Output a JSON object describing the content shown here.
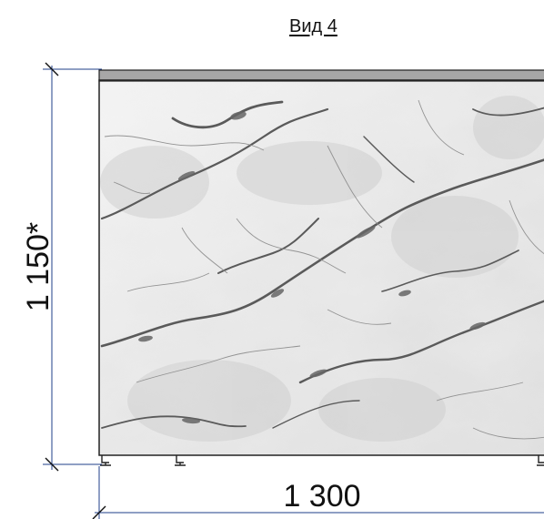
{
  "view": {
    "title": "Вид 4"
  },
  "dimensions": {
    "height": "1 150*",
    "width": "1 300"
  },
  "colors": {
    "dimension_line": "#1f3f88",
    "marble_base": "#e9e9e9",
    "vein_dark": "#5a5a5a",
    "top_strip": "#a7a7a7"
  }
}
